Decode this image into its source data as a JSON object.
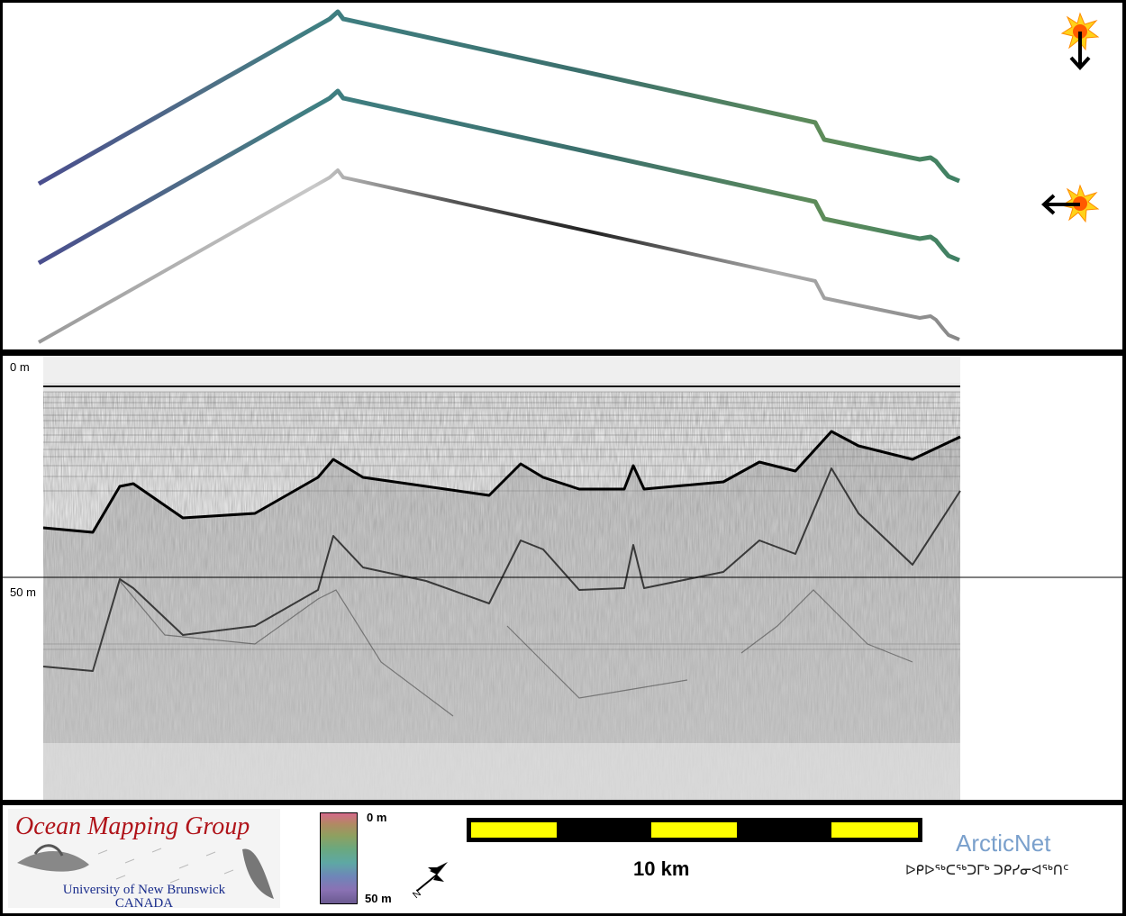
{
  "profile": {
    "depth_labels": [
      "0 m",
      "50 m"
    ]
  },
  "logos": {
    "omg_title": "Ocean Mapping Group",
    "omg_university": "University of New Brunswick",
    "omg_country": "CANADA",
    "arcticnet": "ArcticNet",
    "arcticnet_syllabics": "ᐅᑭᐅᖅᑕᖅᑐᒥᒃ ᑐᑭᓯᓂᐊᖅᑎᑦ"
  },
  "colorbar": {
    "top_label": "0 m",
    "bottom_label": "50 m"
  },
  "scale": {
    "label": "10 km"
  },
  "icons": [
    "sun-illumination-icon",
    "arrow-down-icon",
    "arrow-left-icon",
    "north-arrow-icon"
  ],
  "colors": {
    "scale_yellow": "#ffff00",
    "omg_red": "#b0141a",
    "arcticnet_blue": "#7aa0cc"
  }
}
